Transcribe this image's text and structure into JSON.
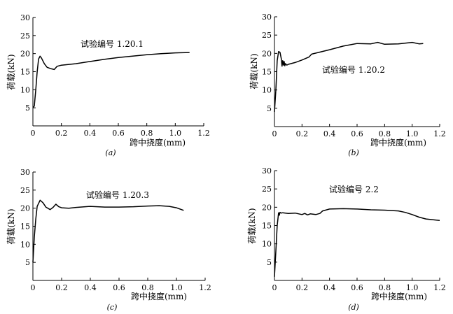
{
  "chart_data": [
    {
      "type": "line",
      "caption": "(a)",
      "annotation": "试验编号 1.20.1",
      "xlabel": "跨中挠度(mm)",
      "ylabel": "荷载(kN)",
      "xticks": [
        "0",
        "0.2",
        "0.4",
        "0.6",
        "0.8",
        "1.0",
        "1.2"
      ],
      "yticks": [
        "5",
        "10",
        "15",
        "20",
        "25",
        "30"
      ],
      "xlim": [
        0,
        1.2
      ],
      "ylim": [
        0,
        30
      ],
      "series": [
        {
          "x": [
            0,
            0.01,
            0.02,
            0.03,
            0.04,
            0.05,
            0.06,
            0.08,
            0.1,
            0.13,
            0.15,
            0.17,
            0.2,
            0.3,
            0.4,
            0.5,
            0.6,
            0.7,
            0.8,
            0.9,
            1.0,
            1.1
          ],
          "y": [
            5,
            5.5,
            10,
            15,
            18.5,
            19.3,
            18.8,
            17.2,
            16.2,
            15.8,
            15.6,
            16.5,
            16.8,
            17.2,
            17.8,
            18.4,
            18.9,
            19.3,
            19.7,
            20.0,
            20.2,
            20.3
          ]
        }
      ]
    },
    {
      "type": "line",
      "caption": "(b)",
      "annotation": "试验编号 1.20.2",
      "xlabel": "跨中挠度(mm)",
      "ylabel": "荷载(kN)",
      "xticks": [
        "0",
        "0.2",
        "0.4",
        "0.6",
        "0.8",
        "1.0",
        "1.2"
      ],
      "yticks": [
        "5",
        "10",
        "15",
        "20",
        "25",
        "30"
      ],
      "xlim": [
        0,
        1.2
      ],
      "ylim": [
        0,
        30
      ],
      "series": [
        {
          "x": [
            0,
            0.01,
            0.02,
            0.03,
            0.04,
            0.05,
            0.055,
            0.06,
            0.065,
            0.07,
            0.075,
            0.08,
            0.09,
            0.1,
            0.15,
            0.2,
            0.25,
            0.27,
            0.4,
            0.5,
            0.6,
            0.7,
            0.75,
            0.8,
            0.9,
            1.0,
            1.05,
            1.08
          ],
          "y": [
            4,
            10,
            18,
            20.5,
            20.3,
            18.5,
            16.5,
            18,
            16.8,
            17.8,
            16.6,
            17.2,
            16.8,
            17,
            17.5,
            18.2,
            19,
            19.8,
            21,
            22,
            22.7,
            22.6,
            23,
            22.5,
            22.6,
            23,
            22.6,
            22.7
          ]
        }
      ]
    },
    {
      "type": "line",
      "caption": "(c)",
      "annotation": "试验编号 1.20.3",
      "xlabel": "跨中挠度(mm)",
      "ylabel": "荷载(kN)",
      "xticks": [
        "0",
        "0.2",
        "0.4",
        "0.6",
        "0.8",
        "1.0",
        "1.2"
      ],
      "yticks": [
        "5",
        "10",
        "15",
        "20",
        "25",
        "30"
      ],
      "xlim": [
        0,
        1.2
      ],
      "ylim": [
        0,
        30
      ],
      "series": [
        {
          "x": [
            0,
            0.01,
            0.02,
            0.03,
            0.05,
            0.07,
            0.09,
            0.12,
            0.14,
            0.16,
            0.18,
            0.2,
            0.25,
            0.3,
            0.4,
            0.5,
            0.6,
            0.7,
            0.8,
            0.88,
            0.95,
            1.0,
            1.05
          ],
          "y": [
            5,
            12,
            17,
            20.5,
            22.2,
            21.5,
            20.3,
            19.6,
            20.2,
            21.1,
            20.4,
            20.1,
            20.0,
            20.2,
            20.5,
            20.3,
            20.3,
            20.4,
            20.6,
            20.7,
            20.5,
            20.1,
            19.4
          ]
        }
      ]
    },
    {
      "type": "line",
      "caption": "(d)",
      "annotation": "试验编号 2.2",
      "xlabel": "跨中挠度(mm)",
      "ylabel": "荷载(kN)",
      "xticks": [
        "0",
        "0.2",
        "0.4",
        "0.6",
        "0.8",
        "1.0",
        "1.2"
      ],
      "yticks": [
        "5",
        "10",
        "15",
        "20",
        "25",
        "30"
      ],
      "xlim": [
        0,
        1.2
      ],
      "ylim": [
        0,
        30
      ],
      "series": [
        {
          "x": [
            0,
            0.01,
            0.02,
            0.03,
            0.035,
            0.04,
            0.05,
            0.06,
            0.1,
            0.15,
            0.2,
            0.22,
            0.24,
            0.26,
            0.3,
            0.33,
            0.35,
            0.4,
            0.5,
            0.6,
            0.7,
            0.8,
            0.9,
            0.95,
            1.0,
            1.05,
            1.1,
            1.2
          ],
          "y": [
            1,
            8,
            15,
            18.5,
            17.8,
            18.6,
            18.4,
            18.5,
            18.3,
            18.4,
            18.0,
            18.3,
            17.9,
            18.2,
            18.0,
            18.3,
            19.0,
            19.5,
            19.6,
            19.5,
            19.3,
            19.2,
            19.0,
            18.6,
            18.0,
            17.3,
            16.8,
            16.4
          ]
        }
      ]
    }
  ]
}
